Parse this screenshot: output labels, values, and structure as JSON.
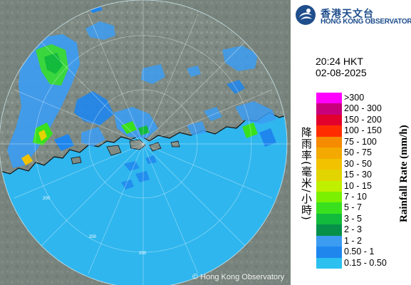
{
  "map": {
    "ring_labels": [
      "200",
      "200",
      "200"
    ],
    "copyright": "© Hong Kong Observatory",
    "colors": {
      "sea": "#2fb6ee",
      "land": "#7f8b84",
      "outside": "#6e7a73",
      "coast": "#101010"
    }
  },
  "header": {
    "logo_text_zh": "香港天文台",
    "logo_text_en": "HONG KONG OBSERVATORY",
    "logo_icon": "hko-logo-icon"
  },
  "time": {
    "time": "20:24 HKT",
    "date": "02-08-2025"
  },
  "legend": {
    "title_zh": "降雨率(毫米/小時)",
    "title_en": "Rainfall Rate (mm/h)",
    "items": [
      {
        "label": ">300",
        "color": "#ff00ff"
      },
      {
        "label": "200 - 300",
        "color": "#c8007c"
      },
      {
        "label": "150 - 200",
        "color": "#e2002c"
      },
      {
        "label": "100 - 150",
        "color": "#ff2d00"
      },
      {
        "label": "75 - 100",
        "color": "#f68a00"
      },
      {
        "label": "50 - 75",
        "color": "#f3a900"
      },
      {
        "label": "30 - 50",
        "color": "#f2c200"
      },
      {
        "label": "15 - 30",
        "color": "#e2d400"
      },
      {
        "label": "10 - 15",
        "color": "#bff000"
      },
      {
        "label": "7 - 10",
        "color": "#7bf000"
      },
      {
        "label": "5 - 7",
        "color": "#39e01e"
      },
      {
        "label": "3 - 5",
        "color": "#12bb3c"
      },
      {
        "label": "2 - 3",
        "color": "#07904a"
      },
      {
        "label": "1 - 2",
        "color": "#3c9cf2"
      },
      {
        "label": "0.50 - 1",
        "color": "#1f86ee"
      },
      {
        "label": "0.15 - 0.50",
        "color": "#2bc0f0"
      }
    ]
  }
}
